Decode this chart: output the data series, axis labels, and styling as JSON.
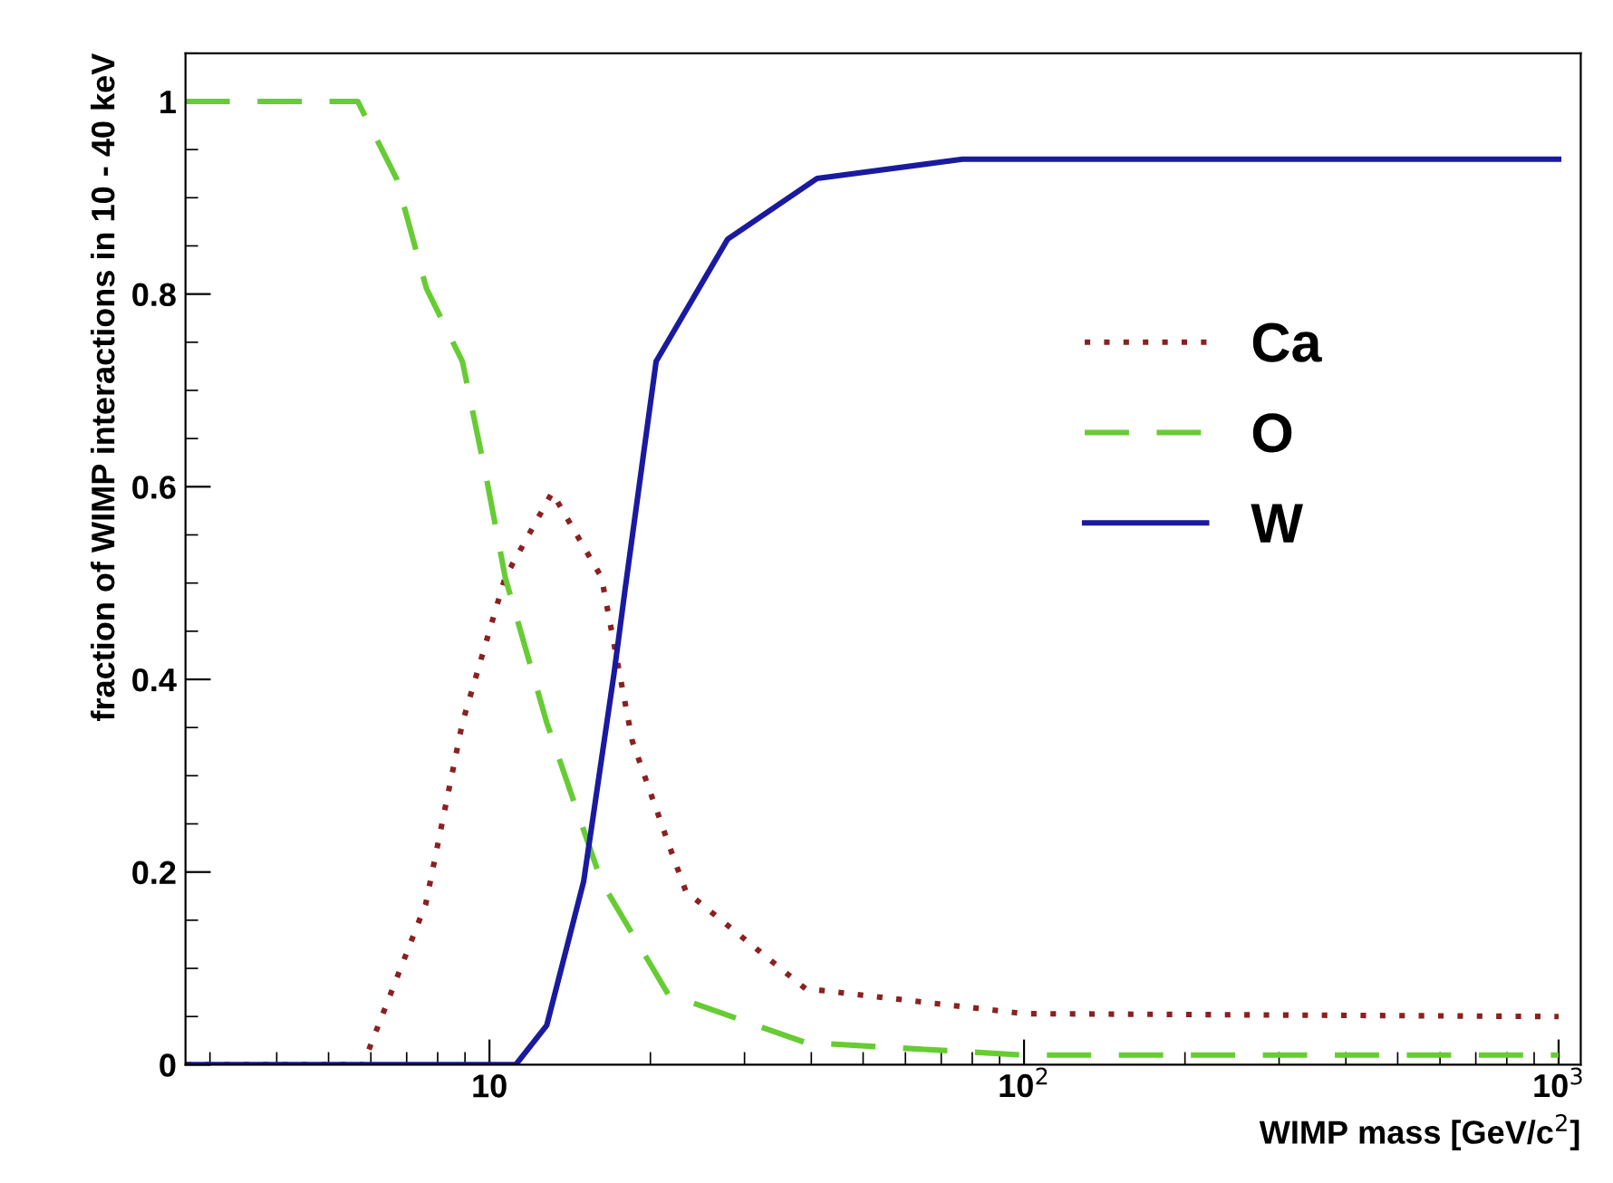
{
  "chart_data": {
    "type": "line",
    "xlabel": "WIMP mass [GeV/c$^{2}$]",
    "ylabel": "fraction of WIMP interactions in 10 - 40 keV",
    "log": "x",
    "xlim": [
      2.7,
      1100
    ],
    "ylim": [
      0,
      1.05
    ],
    "xticks": [
      {
        "value": 10,
        "label": "10"
      },
      {
        "value": 100,
        "label": "10$^{2}$"
      },
      {
        "value": 1000,
        "label": "10$^{3}$"
      }
    ],
    "yticks": [
      0,
      0.2,
      0.4,
      0.6,
      0.8,
      1
    ],
    "grid": false,
    "legend": "right",
    "marker": "none",
    "series": [
      {
        "name": "Ca",
        "color": "#8b2020",
        "line_style": "dotted",
        "x": [
          2.7,
          5.8,
          7.6,
          8.9,
          10.7,
          13.1,
          16.2,
          18.5,
          21.6,
          23.3,
          39,
          100,
          1000
        ],
        "values": [
          0,
          0,
          0.167,
          0.355,
          0.506,
          0.594,
          0.506,
          0.336,
          0.23,
          0.18,
          0.079,
          0.053,
          0.05
        ]
      },
      {
        "name": "O",
        "color": "#66cc33",
        "line_style": "dashed",
        "x": [
          2.7,
          5.67,
          6.7,
          7.62,
          8.9,
          9.9,
          10.7,
          12.8,
          16.2,
          21.6,
          39,
          100,
          1000
        ],
        "values": [
          1,
          1,
          0.92,
          0.806,
          0.73,
          0.605,
          0.506,
          0.355,
          0.19,
          0.073,
          0.023,
          0.01,
          0.01
        ]
      },
      {
        "name": "W",
        "color": "#1a1aa0",
        "line_style": "solid",
        "x": [
          2.7,
          11.2,
          12.8,
          15,
          17.1,
          17.9,
          20.5,
          27.9,
          41,
          76.7,
          100,
          1000
        ],
        "values": [
          0,
          0,
          0.041,
          0.19,
          0.406,
          0.49,
          0.73,
          0.857,
          0.92,
          0.94,
          0.94,
          0.94
        ]
      }
    ]
  }
}
